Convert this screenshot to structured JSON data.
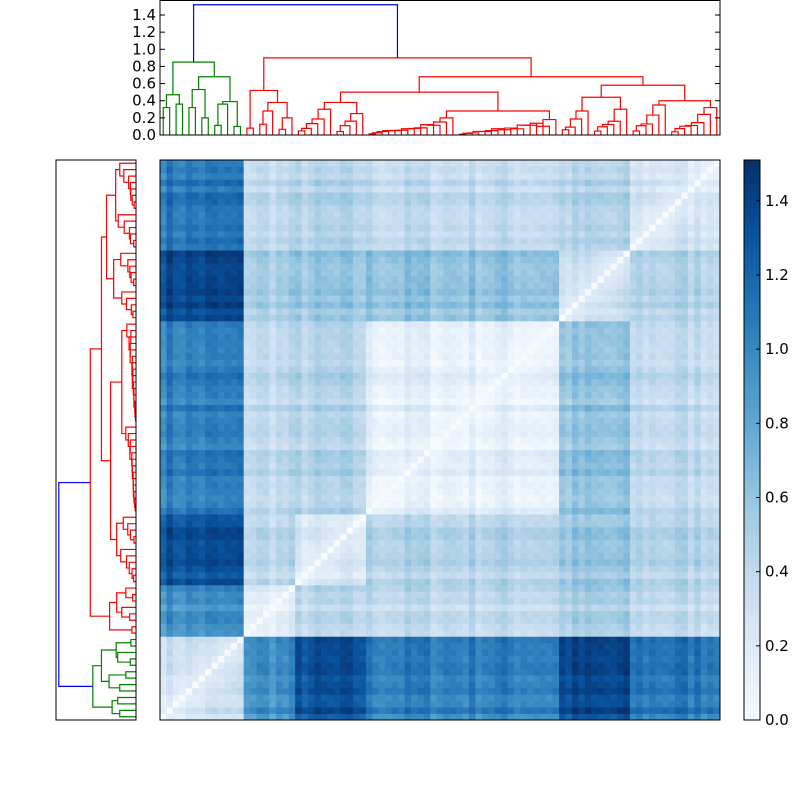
{
  "chart_data": {
    "type": "heatmap",
    "title": "",
    "colormap": "Blues",
    "color_range": [
      0,
      1.51
    ],
    "colorbar_ticks": [
      "0.0",
      "0.2",
      "0.4",
      "0.6",
      "0.8",
      "1.0",
      "1.2",
      "1.4"
    ],
    "colorbar_tick_values": [
      0,
      0.2,
      0.4,
      0.6,
      0.8,
      1.0,
      1.2,
      1.4
    ],
    "dendrogram_axis_ticks": [
      "0.0",
      "0.2",
      "0.4",
      "0.6",
      "0.8",
      "1.0",
      "1.2",
      "1.4"
    ],
    "dendrogram_axis_tick_values": [
      0,
      0.2,
      0.4,
      0.6,
      0.8,
      1.0,
      1.2,
      1.4
    ],
    "dendrogram_range": [
      0,
      1.575
    ],
    "colors": {
      "root_link": "#0000ff",
      "cluster_1": "#008000",
      "cluster_2": "#ff0000"
    },
    "dendrogram_tree": {
      "h": 1.52,
      "color": "root_link",
      "c": [
        {
          "h": 0.85,
          "color": "cluster_1",
          "c": [
            {
              "h": 0.47,
              "c": [
                {
                  "n": 2,
                  "h": 0.32
                },
                {
                  "n": 2,
                  "h": 0.36
                }
              ]
            },
            {
              "h": 0.68,
              "c": [
                {
                  "h": 0.53,
                  "c": [
                    {
                      "n": 2,
                      "h": 0.32
                    },
                    {
                      "n": 2,
                      "h": 0.2
                    }
                  ]
                },
                {
                  "h": 0.39,
                  "c": [
                    {
                      "n": 3,
                      "h": 0.36
                    },
                    {
                      "n": 2,
                      "h": 0.1
                    }
                  ]
                }
              ]
            }
          ]
        },
        {
          "h": 0.9,
          "color": "cluster_2",
          "c": [
            {
              "h": 0.52,
              "c": [
                {
                  "n": 2,
                  "h": 0.08
                },
                {
                  "h": 0.38,
                  "c": [
                    {
                      "n": 3,
                      "h": 0.28
                    },
                    {
                      "n": 3,
                      "h": 0.2
                    }
                  ]
                }
              ]
            },
            {
              "h": 0.68,
              "c": [
                {
                  "h": 0.5,
                  "c": [
                    {
                      "h": 0.38,
                      "c": [
                        {
                          "n": 6,
                          "h": 0.3
                        },
                        {
                          "n": 5,
                          "h": 0.25
                        }
                      ]
                    },
                    {
                      "h": 0.28,
                      "c": [
                        {
                          "n": 14,
                          "h": 0.2
                        },
                        {
                          "n": 16,
                          "h": 0.18
                        }
                      ]
                    }
                  ]
                },
                {
                  "h": 0.58,
                  "c": [
                    {
                      "h": 0.44,
                      "c": [
                        {
                          "n": 5,
                          "h": 0.28
                        },
                        {
                          "n": 6,
                          "h": 0.3
                        }
                      ]
                    },
                    {
                      "h": 0.4,
                      "c": [
                        {
                          "n": 6,
                          "h": 0.35
                        },
                        {
                          "n": 8,
                          "h": 0.32
                        }
                      ]
                    }
                  ]
                }
              ]
            }
          ]
        }
      ]
    },
    "blocks": {
      "sizes": [
        13,
        8,
        11,
        30,
        11,
        14
      ],
      "mean_distance": [
        [
          0.3,
          0.95,
          1.3,
          1.05,
          1.35,
          1.1
        ],
        [
          0.95,
          0.2,
          0.4,
          0.4,
          0.5,
          0.4
        ],
        [
          1.3,
          0.4,
          0.22,
          0.45,
          0.55,
          0.45
        ],
        [
          1.05,
          0.4,
          0.45,
          0.15,
          0.6,
          0.4
        ],
        [
          1.35,
          0.5,
          0.55,
          0.6,
          0.3,
          0.45
        ],
        [
          1.1,
          0.4,
          0.45,
          0.4,
          0.45,
          0.3
        ]
      ]
    }
  }
}
